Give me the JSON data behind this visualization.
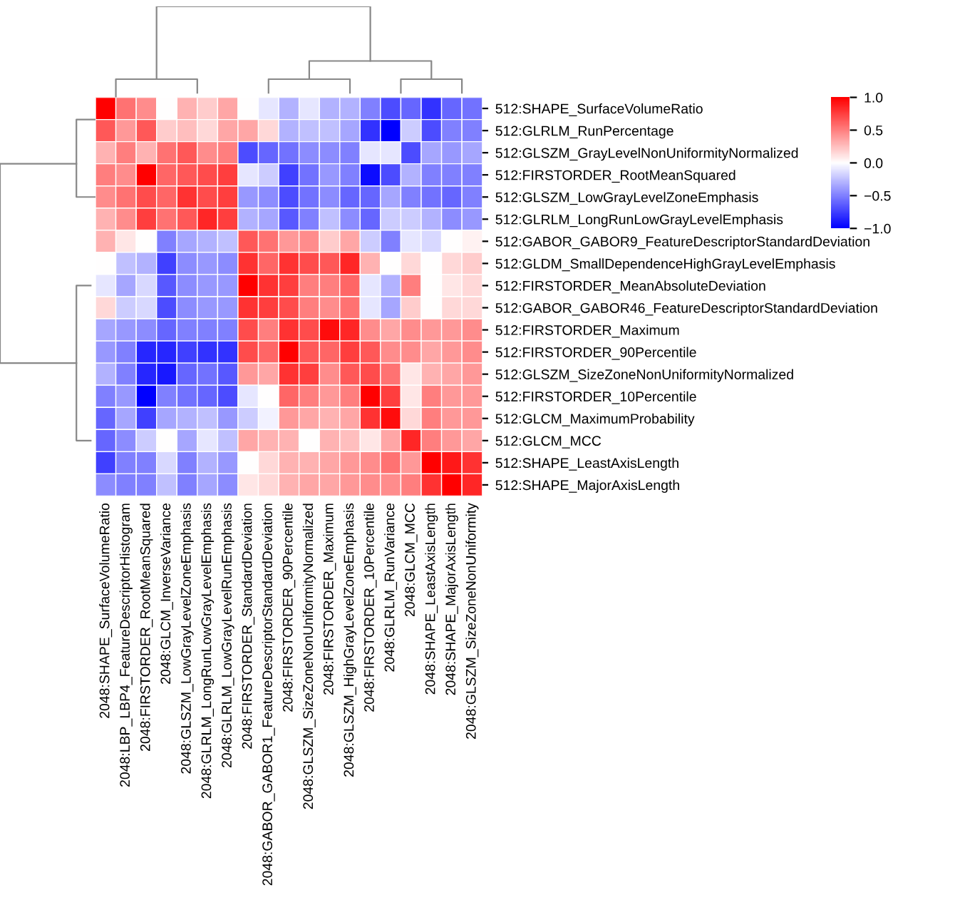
{
  "chart_data": {
    "type": "heatmap",
    "categories": [
      "2048:SHAPE_SurfaceVolumeRatio",
      "2048:LBP_LBP4_FeatureDescriptorHistogram",
      "2048:FIRSTORDER_RootMeanSquared",
      "2048:GLCM_InverseVariance",
      "2048:GLSZM_LowGrayLevelZoneEmphasis",
      "2048:GLRLM_LongRunLowGrayLevelEmphasis",
      "2048:GLRLM_LowGrayLevelRunEmphasis",
      "2048:FIRSTORDER_StandardDeviation",
      "2048:GABOR_GABOR1_FeatureDescriptorStandardDeviation",
      "2048:FIRSTORDER_90Percentile",
      "2048:GLSZM_SizeZoneNonUniformityNormalized",
      "2048:FIRSTORDER_Maximum",
      "2048:GLSZM_HighGrayLevelZoneEmphasis",
      "2048:FIRSTORDER_10Percentile",
      "2048:GLRLM_RunVariance",
      "2048:GLCM_MCC",
      "2048:SHAPE_LeastAxisLength",
      "2048:SHAPE_MajorAxisLength",
      "2048:GLSZM_SizeZoneNonUniformity"
    ],
    "y_categories": [
      "512:SHAPE_SurfaceVolumeRatio",
      "512:GLRLM_RunPercentage",
      "512:GLSZM_GrayLevelNonUniformityNormalized",
      "512:FIRSTORDER_RootMeanSquared",
      "512:GLSZM_LowGrayLevelZoneEmphasis",
      "512:GLRLM_LongRunLowGrayLevelEmphasis",
      "512:GABOR_GABOR9_FeatureDescriptorStandardDeviation",
      "512:GLDM_SmallDependenceHighGrayLevelEmphasis",
      "512:FIRSTORDER_MeanAbsoluteDeviation",
      "512:GABOR_GABOR46_FeatureDescriptorStandardDeviation",
      "512:FIRSTORDER_Maximum",
      "512:FIRSTORDER_90Percentile",
      "512:GLSZM_SizeZoneNonUniformityNormalized",
      "512:FIRSTORDER_10Percentile",
      "512:GLCM_MaximumProbability",
      "512:GLCM_MCC",
      "512:SHAPE_LeastAxisLength",
      "512:SHAPE_MajorAxisLength"
    ],
    "cells": [
      [
        1.0,
        0.55,
        0.45,
        0.0,
        0.3,
        0.2,
        0.35,
        0.0,
        -0.1,
        -0.3,
        -0.1,
        -0.3,
        -0.3,
        -0.5,
        -0.7,
        -0.6,
        -0.8,
        -0.6,
        -0.55
      ],
      [
        0.65,
        0.4,
        0.65,
        0.2,
        0.25,
        0.15,
        0.35,
        0.35,
        0.15,
        -0.3,
        -0.25,
        -0.25,
        -0.35,
        -0.8,
        -1.0,
        -0.2,
        -0.7,
        -0.5,
        -0.5
      ],
      [
        0.3,
        0.5,
        0.3,
        0.55,
        0.65,
        0.45,
        0.5,
        -0.7,
        -0.6,
        -0.55,
        -0.45,
        -0.45,
        -0.5,
        -0.1,
        -0.1,
        -0.7,
        -0.35,
        -0.4,
        -0.35
      ],
      [
        0.5,
        0.45,
        1.0,
        0.6,
        0.65,
        0.7,
        0.75,
        -0.1,
        -0.2,
        -0.75,
        -0.55,
        -0.4,
        -0.5,
        -0.95,
        -0.7,
        -0.3,
        -0.5,
        -0.5,
        -0.5
      ],
      [
        0.45,
        0.55,
        0.7,
        0.6,
        0.8,
        0.7,
        0.75,
        -0.4,
        -0.45,
        -0.7,
        -0.55,
        -0.45,
        -0.6,
        -0.6,
        -0.35,
        -0.5,
        -0.55,
        -0.6,
        -0.5
      ],
      [
        0.3,
        0.45,
        0.75,
        0.55,
        0.65,
        0.85,
        0.75,
        -0.3,
        -0.35,
        -0.65,
        -0.5,
        -0.25,
        -0.45,
        -0.6,
        -0.2,
        -0.2,
        -0.3,
        -0.45,
        -0.4
      ],
      [
        0.3,
        0.1,
        0.0,
        -0.5,
        -0.35,
        -0.3,
        -0.25,
        0.65,
        0.55,
        0.4,
        0.45,
        0.2,
        0.35,
        -0.2,
        -0.5,
        -0.1,
        -0.15,
        0.0,
        0.05
      ],
      [
        0.0,
        -0.25,
        -0.3,
        -0.75,
        -0.45,
        -0.4,
        -0.45,
        0.8,
        0.6,
        0.8,
        0.7,
        0.65,
        0.85,
        0.3,
        0.0,
        0.15,
        0.0,
        0.15,
        0.2
      ],
      [
        -0.1,
        -0.35,
        -0.15,
        -0.65,
        -0.45,
        -0.4,
        -0.4,
        1.0,
        0.8,
        0.75,
        0.5,
        0.5,
        0.6,
        -0.1,
        -0.3,
        0.5,
        0.0,
        0.1,
        0.15
      ],
      [
        0.15,
        -0.2,
        -0.15,
        -0.7,
        -0.45,
        -0.4,
        -0.4,
        0.8,
        0.75,
        0.7,
        0.5,
        0.45,
        0.55,
        -0.1,
        -0.35,
        0.2,
        0.0,
        0.15,
        0.15
      ],
      [
        -0.35,
        -0.4,
        -0.45,
        -0.6,
        -0.5,
        -0.5,
        -0.5,
        0.7,
        0.5,
        0.8,
        0.7,
        0.95,
        0.85,
        0.45,
        0.35,
        0.45,
        0.4,
        0.4,
        0.45
      ],
      [
        -0.4,
        -0.5,
        -0.85,
        -0.85,
        -0.75,
        -0.8,
        -0.8,
        0.7,
        0.6,
        1.0,
        0.65,
        0.6,
        0.75,
        0.65,
        0.45,
        0.45,
        0.35,
        0.4,
        0.45
      ],
      [
        -0.3,
        -0.5,
        -0.85,
        -0.9,
        -0.6,
        -0.55,
        -0.65,
        0.4,
        0.35,
        0.8,
        0.75,
        0.45,
        0.65,
        0.7,
        0.55,
        0.1,
        0.3,
        0.35,
        0.4
      ],
      [
        -0.5,
        -0.4,
        -1.0,
        -0.5,
        -0.55,
        -0.6,
        -0.7,
        -0.1,
        0.0,
        0.6,
        0.5,
        0.4,
        0.5,
        1.0,
        0.75,
        0.1,
        0.5,
        0.4,
        0.4
      ],
      [
        -0.6,
        -0.35,
        -0.75,
        -0.35,
        -0.3,
        -0.25,
        -0.4,
        -0.2,
        -0.05,
        0.4,
        0.35,
        0.3,
        0.35,
        0.8,
        0.95,
        0.15,
        0.5,
        0.4,
        0.4
      ],
      [
        -0.6,
        -0.45,
        -0.2,
        0.0,
        -0.35,
        -0.1,
        -0.25,
        0.35,
        0.3,
        0.3,
        0.0,
        0.3,
        0.25,
        0.1,
        0.35,
        0.85,
        0.5,
        0.4,
        0.35
      ],
      [
        -0.75,
        -0.5,
        -0.5,
        -0.15,
        -0.5,
        -0.3,
        -0.4,
        0.0,
        0.15,
        0.3,
        0.3,
        0.35,
        0.4,
        0.45,
        0.55,
        0.4,
        1.0,
        0.9,
        0.8
      ],
      [
        -0.45,
        -0.5,
        -0.5,
        -0.25,
        -0.5,
        -0.35,
        -0.45,
        0.1,
        0.15,
        0.3,
        0.35,
        0.35,
        0.4,
        0.45,
        0.45,
        0.5,
        0.8,
        1.0,
        0.85
      ]
    ],
    "clim": [
      -1.0,
      1.0
    ],
    "cticks": [
      {
        "value": -1,
        "label": "−1.0"
      },
      -0.5,
      {
        "value": 0,
        "label": "0.0"
      },
      0.5,
      {
        "value": 1,
        "label": "1.0"
      }
    ]
  }
}
